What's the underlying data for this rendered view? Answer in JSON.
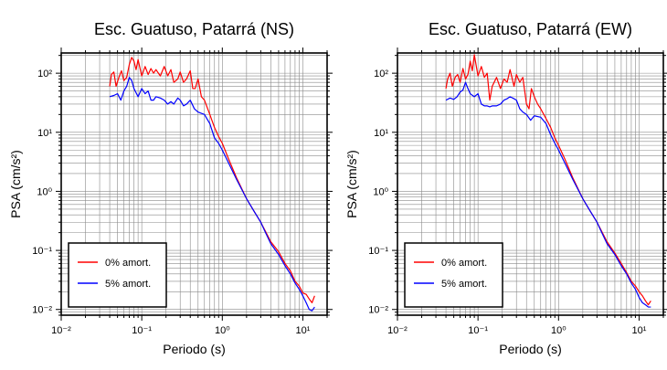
{
  "chart_data": [
    {
      "type": "line",
      "title": "Esc. Guatuso, Patarrá (NS)",
      "xlabel": "Periodo (s)",
      "ylabel": "PSA (cm/s²)",
      "xscale": "log",
      "yscale": "log",
      "xlim": [
        0.01,
        20
      ],
      "ylim": [
        0.008,
        220
      ],
      "grid": true,
      "legend_position": "bottom-left",
      "x_tick_labels": [
        "10⁻²",
        "10⁻¹",
        "10⁰",
        "10¹"
      ],
      "y_tick_labels": [
        "10⁻²",
        "10⁻¹",
        "10⁰",
        "10¹",
        "10²"
      ],
      "series": [
        {
          "name": "0% amort.",
          "color": "#ff0000",
          "x": [
            0.04,
            0.042,
            0.045,
            0.048,
            0.052,
            0.056,
            0.06,
            0.065,
            0.07,
            0.075,
            0.08,
            0.085,
            0.09,
            0.1,
            0.11,
            0.12,
            0.13,
            0.14,
            0.15,
            0.17,
            0.19,
            0.21,
            0.23,
            0.25,
            0.28,
            0.3,
            0.33,
            0.36,
            0.4,
            0.43,
            0.46,
            0.5,
            0.55,
            0.6,
            0.7,
            0.8,
            0.9,
            1.0,
            1.2,
            1.5,
            2.0,
            2.5,
            3.0,
            3.5,
            4.0,
            5.0,
            6.0,
            7.0,
            8.0,
            9.0,
            10.0,
            11.0,
            12.0,
            13.0,
            14.0
          ],
          "y": [
            60,
            95,
            105,
            60,
            85,
            110,
            75,
            85,
            140,
            185,
            160,
            115,
            170,
            90,
            130,
            95,
            120,
            100,
            115,
            90,
            130,
            90,
            115,
            70,
            80,
            105,
            70,
            80,
            110,
            55,
            55,
            80,
            40,
            35,
            20,
            12,
            8.5,
            6.5,
            3.5,
            1.7,
            0.75,
            0.45,
            0.3,
            0.2,
            0.14,
            0.095,
            0.06,
            0.045,
            0.03,
            0.025,
            0.019,
            0.018,
            0.015,
            0.013,
            0.017
          ]
        },
        {
          "name": "5% amort.",
          "color": "#0000ff",
          "x": [
            0.04,
            0.045,
            0.05,
            0.055,
            0.06,
            0.065,
            0.07,
            0.075,
            0.08,
            0.09,
            0.1,
            0.11,
            0.12,
            0.13,
            0.14,
            0.15,
            0.17,
            0.19,
            0.21,
            0.23,
            0.25,
            0.28,
            0.3,
            0.33,
            0.36,
            0.4,
            0.45,
            0.5,
            0.6,
            0.7,
            0.8,
            0.9,
            1.0,
            1.2,
            1.5,
            2.0,
            2.5,
            3.0,
            3.5,
            4.0,
            5.0,
            6.0,
            7.0,
            8.0,
            9.0,
            10.0,
            11.0,
            12.0,
            13.0,
            14.0
          ],
          "y": [
            40,
            42,
            45,
            35,
            50,
            60,
            85,
            75,
            55,
            40,
            55,
            45,
            50,
            35,
            35,
            40,
            38,
            35,
            30,
            33,
            30,
            38,
            35,
            28,
            30,
            35,
            25,
            22,
            20,
            14,
            8,
            6.5,
            5,
            3,
            1.6,
            0.75,
            0.45,
            0.3,
            0.19,
            0.13,
            0.085,
            0.055,
            0.04,
            0.028,
            0.022,
            0.017,
            0.013,
            0.01,
            0.0095,
            0.011
          ]
        }
      ]
    },
    {
      "type": "line",
      "title": "Esc. Guatuso, Patarrá (EW)",
      "xlabel": "Periodo (s)",
      "ylabel": "PSA (cm/s²)",
      "xscale": "log",
      "yscale": "log",
      "xlim": [
        0.01,
        20
      ],
      "ylim": [
        0.008,
        220
      ],
      "grid": true,
      "legend_position": "bottom-left",
      "x_tick_labels": [
        "10⁻²",
        "10⁻¹",
        "10⁰",
        "10¹"
      ],
      "y_tick_labels": [
        "10⁻²",
        "10⁻¹",
        "10⁰",
        "10¹",
        "10²"
      ],
      "series": [
        {
          "name": "0% amort.",
          "color": "#ff0000",
          "x": [
            0.04,
            0.042,
            0.045,
            0.048,
            0.052,
            0.056,
            0.06,
            0.065,
            0.07,
            0.075,
            0.08,
            0.085,
            0.09,
            0.1,
            0.11,
            0.12,
            0.13,
            0.14,
            0.15,
            0.17,
            0.19,
            0.21,
            0.23,
            0.25,
            0.28,
            0.3,
            0.33,
            0.36,
            0.4,
            0.43,
            0.46,
            0.5,
            0.55,
            0.6,
            0.7,
            0.8,
            0.9,
            1.0,
            1.2,
            1.5,
            2.0,
            2.5,
            3.0,
            3.5,
            4.0,
            5.0,
            6.0,
            7.0,
            8.0,
            9.0,
            10.0,
            11.0,
            12.0,
            13.0,
            14.0
          ],
          "y": [
            55,
            80,
            100,
            60,
            85,
            95,
            70,
            120,
            80,
            95,
            160,
            110,
            205,
            90,
            130,
            85,
            100,
            35,
            60,
            85,
            55,
            80,
            70,
            115,
            60,
            95,
            70,
            85,
            30,
            25,
            55,
            40,
            30,
            25,
            17,
            12,
            8,
            6,
            3.5,
            1.7,
            0.75,
            0.45,
            0.3,
            0.2,
            0.14,
            0.09,
            0.06,
            0.042,
            0.03,
            0.025,
            0.02,
            0.017,
            0.014,
            0.012,
            0.014
          ]
        },
        {
          "name": "5% amort.",
          "color": "#0000ff",
          "x": [
            0.04,
            0.045,
            0.05,
            0.055,
            0.06,
            0.065,
            0.07,
            0.075,
            0.08,
            0.09,
            0.1,
            0.11,
            0.12,
            0.13,
            0.14,
            0.15,
            0.17,
            0.19,
            0.21,
            0.23,
            0.25,
            0.28,
            0.3,
            0.33,
            0.36,
            0.4,
            0.45,
            0.5,
            0.6,
            0.7,
            0.8,
            0.9,
            1.0,
            1.2,
            1.5,
            2.0,
            2.5,
            3.0,
            3.5,
            4.0,
            5.0,
            6.0,
            7.0,
            8.0,
            9.0,
            10.0,
            11.0,
            12.0,
            13.0,
            14.0
          ],
          "y": [
            35,
            38,
            36,
            40,
            48,
            52,
            70,
            55,
            45,
            40,
            45,
            30,
            28,
            28,
            27,
            28,
            28,
            30,
            35,
            37,
            40,
            37,
            35,
            25,
            22,
            20,
            16,
            19,
            18,
            14,
            9,
            6.5,
            5,
            3,
            1.6,
            0.75,
            0.45,
            0.3,
            0.19,
            0.13,
            0.085,
            0.055,
            0.04,
            0.028,
            0.022,
            0.016,
            0.013,
            0.012,
            0.011,
            0.011
          ]
        }
      ]
    }
  ]
}
